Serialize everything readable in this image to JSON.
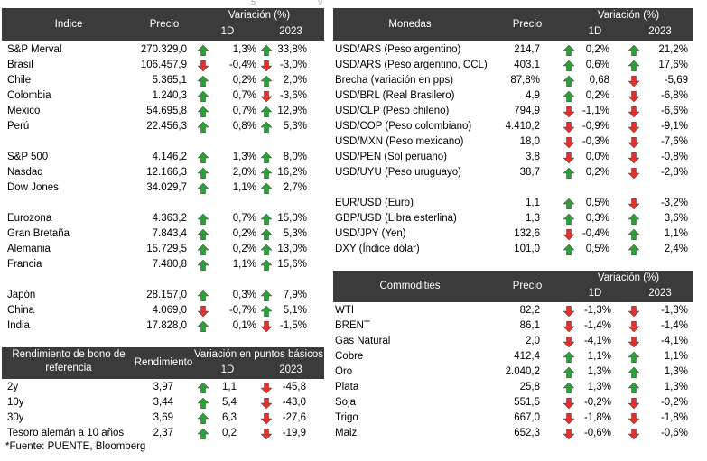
{
  "colors": {
    "header_bg": "#3b3b3b",
    "header_text": "#ffffff",
    "up": "#2e9e3a",
    "down": "#e03131"
  },
  "top_ticks": [
    "5",
    "9"
  ],
  "indices": {
    "headers": {
      "name": "Indice",
      "price": "Precio",
      "variation": "Variación (%)",
      "d1": "1D",
      "ytd": "2023"
    },
    "rows": [
      {
        "name": "S&P Merval",
        "price": "270.329,0",
        "d1": "1,3%",
        "d1_dir": "up",
        "ytd": "33,8%",
        "ytd_dir": "up"
      },
      {
        "name": "Brasil",
        "price": "106.457,9",
        "d1": "-0,4%",
        "d1_dir": "down",
        "ytd": "-3,0%",
        "ytd_dir": "down"
      },
      {
        "name": "Chile",
        "price": "5.365,1",
        "d1": "0,2%",
        "d1_dir": "up",
        "ytd": "2,0%",
        "ytd_dir": "up"
      },
      {
        "name": "Colombia",
        "price": "1.240,3",
        "d1": "0,7%",
        "d1_dir": "up",
        "ytd": "-3,6%",
        "ytd_dir": "down"
      },
      {
        "name": "Mexico",
        "price": "54.695,8",
        "d1": "0,7%",
        "d1_dir": "up",
        "ytd": "12,9%",
        "ytd_dir": "up"
      },
      {
        "name": "Perú",
        "price": "22.456,3",
        "d1": "0,8%",
        "d1_dir": "up",
        "ytd": "5,3%",
        "ytd_dir": "up"
      },
      {
        "name": "S&P 500",
        "price": "4.146,2",
        "d1": "1,3%",
        "d1_dir": "up",
        "ytd": "8,0%",
        "ytd_dir": "up"
      },
      {
        "name": "Nasdaq",
        "price": "12.166,3",
        "d1": "2,0%",
        "d1_dir": "up",
        "ytd": "16,2%",
        "ytd_dir": "up"
      },
      {
        "name": "Dow Jones",
        "price": "34.029,7",
        "d1": "1,1%",
        "d1_dir": "up",
        "ytd": "2,7%",
        "ytd_dir": "up"
      },
      {
        "name": "Eurozona",
        "price": "4.363,2",
        "d1": "0,7%",
        "d1_dir": "up",
        "ytd": "15,0%",
        "ytd_dir": "up"
      },
      {
        "name": "Gran Bretaña",
        "price": "7.843,4",
        "d1": "0,2%",
        "d1_dir": "up",
        "ytd": "5,3%",
        "ytd_dir": "up"
      },
      {
        "name": "Alemania",
        "price": "15.729,5",
        "d1": "0,2%",
        "d1_dir": "up",
        "ytd": "13,0%",
        "ytd_dir": "up"
      },
      {
        "name": "Francia",
        "price": "7.480,8",
        "d1": "1,1%",
        "d1_dir": "up",
        "ytd": "15,6%",
        "ytd_dir": "up"
      },
      {
        "name": "Japón",
        "price": "28.157,0",
        "d1": "0,3%",
        "d1_dir": "up",
        "ytd": "7,9%",
        "ytd_dir": "up"
      },
      {
        "name": "China",
        "price": "4.069,0",
        "d1": "-0,7%",
        "d1_dir": "down",
        "ytd": "5,1%",
        "ytd_dir": "up"
      },
      {
        "name": "India",
        "price": "17.828,0",
        "d1": "0,1%",
        "d1_dir": "up",
        "ytd": "-1,5%",
        "ytd_dir": "down"
      }
    ]
  },
  "bonds": {
    "headers": {
      "name_line1": "Rendimiento de bono de",
      "name_line2": "referencia",
      "yield": "Rendimiento",
      "variation": "Variación en puntos básicos",
      "d1": "1D",
      "ytd": "2023"
    },
    "rows": [
      {
        "name": "2y",
        "yield": "3,97",
        "d1": "1,1",
        "d1_dir": "up",
        "ytd": "-45,8",
        "ytd_dir": "down"
      },
      {
        "name": "10y",
        "yield": "3,44",
        "d1": "5,4",
        "d1_dir": "up",
        "ytd": "-43,0",
        "ytd_dir": "down"
      },
      {
        "name": "30y",
        "yield": "3,69",
        "d1": "6,3",
        "d1_dir": "up",
        "ytd": "-27,6",
        "ytd_dir": "down"
      },
      {
        "name": "Tesoro alemán a 10 años",
        "yield": "2,37",
        "d1": "0,2",
        "d1_dir": "up",
        "ytd": "-19,9",
        "ytd_dir": "down"
      }
    ]
  },
  "footnote": "*Fuente: PUENTE, Bloomberg",
  "currencies": {
    "headers": {
      "name": "Monedas",
      "price": "Precio",
      "variation": "Variación (%)",
      "d1": "1D",
      "ytd": "2023"
    },
    "rows": [
      {
        "name": "USD/ARS (Peso argentino)",
        "price": "214,7",
        "d1": "0,2%",
        "d1_dir": "up",
        "ytd": "21,2%",
        "ytd_dir": "up"
      },
      {
        "name": "USD/ARS (Peso argentino, CCL)",
        "price": "403,1",
        "d1": "0,6%",
        "d1_dir": "up",
        "ytd": "17,6%",
        "ytd_dir": "up"
      },
      {
        "name": "Brecha (variación en pps)",
        "price": "87,8%",
        "d1": "0,68",
        "d1_dir": "up",
        "ytd": "-5,69",
        "ytd_dir": "down"
      },
      {
        "name": "USD/BRL (Real Brasilero)",
        "price": "4,9",
        "d1": "0,2%",
        "d1_dir": "up",
        "ytd": "-6,8%",
        "ytd_dir": "down"
      },
      {
        "name": "USD/CLP (Peso chileno)",
        "price": "794,9",
        "d1": "-1,1%",
        "d1_dir": "down",
        "ytd": "-6,6%",
        "ytd_dir": "down"
      },
      {
        "name": "USD/COP (Peso colombiano)",
        "price": "4.410,2",
        "d1": "-0,9%",
        "d1_dir": "down",
        "ytd": "-9,1%",
        "ytd_dir": "down"
      },
      {
        "name": "USD/MXN (Peso mexicano)",
        "price": "18,0",
        "d1": "-0,3%",
        "d1_dir": "down",
        "ytd": "-7,6%",
        "ytd_dir": "down"
      },
      {
        "name": "USD/PEN (Sol peruano)",
        "price": "3,8",
        "d1": "0,0%",
        "d1_dir": "down",
        "ytd": "-0,8%",
        "ytd_dir": "down"
      },
      {
        "name": "USD/UYU (Peso uruguayo)",
        "price": "38,7",
        "d1": "0,2%",
        "d1_dir": "up",
        "ytd": "-2,8%",
        "ytd_dir": "down"
      },
      {
        "name": "EUR/USD (Euro)",
        "price": "1,1",
        "d1": "0,5%",
        "d1_dir": "up",
        "ytd": "-3,2%",
        "ytd_dir": "down"
      },
      {
        "name": "GBP/USD (Libra esterlina)",
        "price": "1,3",
        "d1": "0,3%",
        "d1_dir": "up",
        "ytd": "3,6%",
        "ytd_dir": "up"
      },
      {
        "name": "USD/JPY (Yen)",
        "price": "132,6",
        "d1": "-0,4%",
        "d1_dir": "down",
        "ytd": "1,1%",
        "ytd_dir": "up"
      },
      {
        "name": "DXY (Índice dólar)",
        "price": "101,0",
        "d1": "0,5%",
        "d1_dir": "up",
        "ytd": "2,4%",
        "ytd_dir": "up"
      }
    ]
  },
  "commodities": {
    "headers": {
      "name": "Commodities",
      "price": "Precio",
      "variation": "Variación (%)",
      "d1": "1D",
      "ytd": "2023"
    },
    "rows": [
      {
        "name": "WTI",
        "price": "82,2",
        "d1": "-1,3%",
        "d1_dir": "down",
        "ytd": "-1,3%",
        "ytd_dir": "down"
      },
      {
        "name": "BRENT",
        "price": "86,1",
        "d1": "-1,4%",
        "d1_dir": "down",
        "ytd": "-1,4%",
        "ytd_dir": "down"
      },
      {
        "name": "Gas Natural",
        "price": "2,0",
        "d1": "-4,1%",
        "d1_dir": "down",
        "ytd": "-4,1%",
        "ytd_dir": "down"
      },
      {
        "name": "Cobre",
        "price": "412,4",
        "d1": "1,1%",
        "d1_dir": "up",
        "ytd": "1,1%",
        "ytd_dir": "up"
      },
      {
        "name": "Oro",
        "price": "2.040,2",
        "d1": "1,3%",
        "d1_dir": "up",
        "ytd": "1,3%",
        "ytd_dir": "up"
      },
      {
        "name": "Plata",
        "price": "25,8",
        "d1": "1,3%",
        "d1_dir": "up",
        "ytd": "1,3%",
        "ytd_dir": "up"
      },
      {
        "name": "Soja",
        "price": "551,5",
        "d1": "-0,2%",
        "d1_dir": "down",
        "ytd": "-0,2%",
        "ytd_dir": "down"
      },
      {
        "name": "Trigo",
        "price": "667,0",
        "d1": "-1,8%",
        "d1_dir": "down",
        "ytd": "-1,8%",
        "ytd_dir": "down"
      },
      {
        "name": "Maiz",
        "price": "652,3",
        "d1": "-0,6%",
        "d1_dir": "down",
        "ytd": "-0,6%",
        "ytd_dir": "down"
      }
    ]
  }
}
